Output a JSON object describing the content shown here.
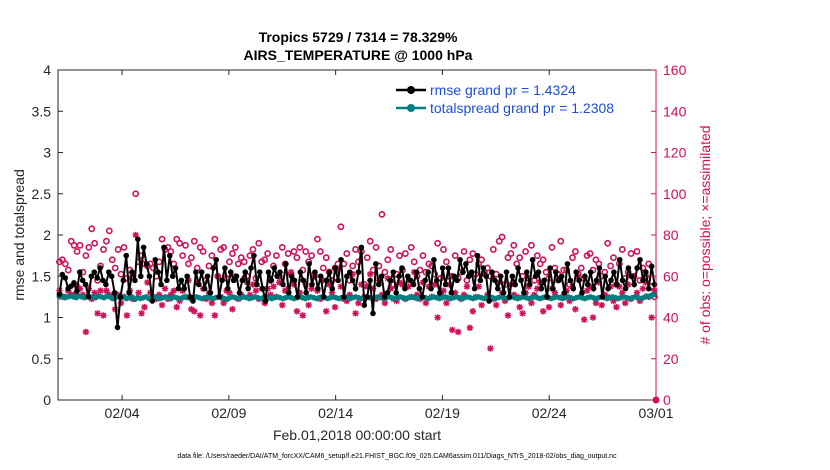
{
  "chart_data": {
    "type": "line",
    "title_line1": "Tropics 5729 / 7314 = 78.329%",
    "title_line2": "AIRS_TEMPERATURE @ 1000 hPa",
    "ylabel_left": "rmse and totalspread",
    "ylabel_right": "# of obs: o=possible; ×=assimilated",
    "xlabel": "Feb.01,2018 00:00:00 start",
    "footnote": "data file: /Users/raeder/DAI/ATM_forcXX/CAM6_setup/f.e21.FHIST_BGC.f09_025.CAM6assim.011/Diags_NTrS_2018-02/obs_diag_output.nc",
    "xlim_days": [
      1,
      29
    ],
    "x_ticks": [
      {
        "day": 4,
        "label": "02/04"
      },
      {
        "day": 9,
        "label": "02/09"
      },
      {
        "day": 14,
        "label": "02/14"
      },
      {
        "day": 19,
        "label": "02/19"
      },
      {
        "day": 24,
        "label": "02/24"
      },
      {
        "day": 29,
        "label": "03/01"
      }
    ],
    "ylim_left": [
      0,
      4
    ],
    "y_ticks_left": [
      "0",
      "0.5",
      "1",
      "1.5",
      "2",
      "2.5",
      "3",
      "3.5",
      "4"
    ],
    "ylim_right": [
      0,
      160
    ],
    "y_ticks_right": [
      "0",
      "20",
      "40",
      "60",
      "80",
      "100",
      "120",
      "140",
      "160"
    ],
    "grid": false,
    "legend_position": "top-right",
    "colors": {
      "rmse": "#000000",
      "spread": "#008080",
      "obs": "#d1105a",
      "legend_text": "#1a4fd6",
      "axis": "#262626"
    },
    "series": [
      {
        "name": "rmse grand pr = 1.4324",
        "axis": "left",
        "marker": "filled-circle",
        "values": [
          1.28,
          1.52,
          1.48,
          1.35,
          1.38,
          1.42,
          1.32,
          1.55,
          1.45,
          1.4,
          1.25,
          1.5,
          1.55,
          1.48,
          1.6,
          1.45,
          1.4,
          1.55,
          1.5,
          1.3,
          0.88,
          1.25,
          1.45,
          1.75,
          1.3,
          1.55,
          1.45,
          1.95,
          1.5,
          1.85,
          1.65,
          1.5,
          1.2,
          1.7,
          1.55,
          1.4,
          1.85,
          1.45,
          1.75,
          1.5,
          1.6,
          1.35,
          1.45,
          1.35,
          1.5,
          1.25,
          1.2,
          1.55,
          1.4,
          1.55,
          1.35,
          1.5,
          1.3,
          1.6,
          1.7,
          1.25,
          1.45,
          1.6,
          1.35,
          1.55,
          1.45,
          1.5,
          1.3,
          1.45,
          1.55,
          1.35,
          1.6,
          1.75,
          1.4,
          1.55,
          1.35,
          1.2,
          1.55,
          1.45,
          1.6,
          1.5,
          1.55,
          1.4,
          1.65,
          1.3,
          1.5,
          1.45,
          1.25,
          1.55,
          1.45,
          1.3,
          1.65,
          1.4,
          1.55,
          1.35,
          1.5,
          1.25,
          1.45,
          1.55,
          1.35,
          1.6,
          1.45,
          1.7,
          1.25,
          1.5,
          1.55,
          1.45,
          1.35,
          1.55,
          1.85,
          1.15,
          1.25,
          1.45,
          1.05,
          1.65,
          1.4,
          1.5,
          1.25,
          1.3,
          1.45,
          1.55,
          1.3,
          1.5,
          1.6,
          1.35,
          1.5,
          1.45,
          1.4,
          1.55,
          1.35,
          1.25,
          1.45,
          1.55,
          1.35,
          1.7,
          1.45,
          1.3,
          1.6,
          1.4,
          1.6,
          1.3,
          1.5,
          1.45,
          1.7,
          1.55,
          1.65,
          1.5,
          1.55,
          1.35,
          1.75,
          1.45,
          1.6,
          1.5,
          1.2,
          1.55,
          1.45,
          1.35,
          1.5,
          1.3,
          1.55,
          1.25,
          1.5,
          1.4,
          1.6,
          1.45,
          1.3,
          1.55,
          1.4,
          1.7,
          1.5,
          1.55,
          1.35,
          1.45,
          1.25,
          1.6,
          1.35,
          1.55,
          1.45,
          1.5,
          1.3,
          1.65,
          1.45,
          1.35,
          1.55,
          1.45,
          1.3,
          1.5,
          1.4,
          1.55,
          1.35,
          1.45,
          1.6,
          1.25,
          1.5,
          1.35,
          1.45,
          1.55,
          1.4,
          1.7,
          1.45,
          1.35,
          1.6,
          1.5,
          1.4,
          1.6,
          1.7,
          1.45,
          1.55,
          1.35,
          1.62,
          1.4
        ]
      },
      {
        "name": "totalspread grand pr = 1.2308",
        "axis": "left",
        "marker": "filled-circle",
        "values": [
          1.25,
          1.26,
          1.24,
          1.25,
          1.26,
          1.25,
          1.24,
          1.26,
          1.25,
          1.24,
          1.26,
          1.25,
          1.25,
          1.24,
          1.26,
          1.25,
          1.24,
          1.26,
          1.25,
          1.23,
          1.24,
          1.25,
          1.24,
          1.25,
          1.23,
          1.24,
          1.25,
          1.22,
          1.24,
          1.23,
          1.24,
          1.25,
          1.23,
          1.24,
          1.25,
          1.24,
          1.23,
          1.24,
          1.25,
          1.24,
          1.23,
          1.25,
          1.24,
          1.23,
          1.24,
          1.25,
          1.24,
          1.23,
          1.24,
          1.25,
          1.24,
          1.23,
          1.24,
          1.25,
          1.24,
          1.23,
          1.24,
          1.25,
          1.24,
          1.23,
          1.22,
          1.24,
          1.25,
          1.24,
          1.23,
          1.24,
          1.25,
          1.24,
          1.23,
          1.24,
          1.25,
          1.24,
          1.23,
          1.24,
          1.25,
          1.24,
          1.23,
          1.24,
          1.25,
          1.24,
          1.23,
          1.24,
          1.25,
          1.24,
          1.23,
          1.24,
          1.25,
          1.24,
          1.23,
          1.24,
          1.25,
          1.24,
          1.23,
          1.24,
          1.25,
          1.24,
          1.23,
          1.24,
          1.25,
          1.24,
          1.23,
          1.24,
          1.25,
          1.24,
          1.23,
          1.24,
          1.25,
          1.24,
          1.23,
          1.24,
          1.25,
          1.24,
          1.23,
          1.24,
          1.25,
          1.24,
          1.23,
          1.24,
          1.25,
          1.24,
          1.23,
          1.24,
          1.25,
          1.24,
          1.23,
          1.24,
          1.25,
          1.24,
          1.23,
          1.24,
          1.25,
          1.24,
          1.23,
          1.24,
          1.25,
          1.24,
          1.23,
          1.24,
          1.25,
          1.24,
          1.23,
          1.24,
          1.25,
          1.24,
          1.23,
          1.24,
          1.25,
          1.24,
          1.23,
          1.24,
          1.25,
          1.24,
          1.23,
          1.24,
          1.25,
          1.24,
          1.23,
          1.24,
          1.25,
          1.24,
          1.23,
          1.24,
          1.25,
          1.24,
          1.23,
          1.24,
          1.25,
          1.24,
          1.23,
          1.24,
          1.25,
          1.24,
          1.23,
          1.24,
          1.25,
          1.24,
          1.23,
          1.24,
          1.25,
          1.24,
          1.23,
          1.24,
          1.25,
          1.24,
          1.23,
          1.24,
          1.25,
          1.24,
          1.23,
          1.24,
          1.25,
          1.24,
          1.23,
          1.24,
          1.25,
          1.24,
          1.23,
          1.24,
          1.25,
          1.24,
          1.23,
          1.24,
          1.25,
          1.24,
          1.23,
          1.24,
          1.25,
          1.24,
          1.23,
          1.24,
          1.26,
          1.25,
          1.27,
          1.28
        ]
      },
      {
        "name": "obs possible",
        "axis": "right",
        "marker": "open-circle",
        "values": [
          67,
          68,
          66,
          63,
          77,
          75,
          72,
          75,
          62,
          70,
          74,
          83,
          76,
          58,
          65,
          73,
          77,
          82,
          68,
          64,
          73,
          61,
          74,
          59,
          63,
          60,
          100,
          67,
          70,
          66,
          65,
          66,
          64,
          60,
          67,
          78,
          73,
          74,
          72,
          66,
          78,
          76,
          70,
          75,
          66,
          69,
          77,
          64,
          74,
          72,
          58,
          65,
          70,
          78,
          60,
          73,
          74,
          59,
          67,
          71,
          74,
          66,
          69,
          67,
          60,
          70,
          73,
          59,
          76,
          67,
          68,
          71,
          58,
          65,
          70,
          60,
          74,
          66,
          71,
          61,
          72,
          69,
          74,
          63,
          72,
          67,
          70,
          60,
          78,
          72,
          64,
          69,
          62,
          58,
          64,
          66,
          84,
          66,
          71,
          58,
          65,
          73,
          67,
          72,
          56,
          69,
          77,
          63,
          74,
          65,
          90,
          62,
          68,
          73,
          56,
          61,
          70,
          63,
          71,
          56,
          74,
          67,
          60,
          63,
          70,
          62,
          66,
          65,
          61,
          76,
          59,
          73,
          67,
          60,
          60,
          70,
          59,
          62,
          72,
          58,
          68,
          71,
          61,
          66,
          68,
          62,
          64,
          60,
          73,
          61,
          77,
          79,
          56,
          69,
          71,
          75,
          66,
          69,
          60,
          72,
          59,
          75,
          58,
          70,
          66,
          68,
          62,
          59,
          74,
          64,
          61,
          77,
          63,
          63,
          56,
          69,
          72,
          61,
          64,
          59,
          70,
          71,
          63,
          68,
          66,
          60,
          62,
          76,
          65,
          69,
          56,
          66,
          73,
          59,
          62,
          71,
          60,
          72,
          58,
          64,
          60,
          66,
          55,
          50
        ]
      },
      {
        "name": "obs assimilated",
        "axis": "right",
        "marker": "asterisk",
        "values": [
          53,
          50,
          50,
          53,
          51,
          51,
          55,
          54,
          51,
          33,
          54,
          49,
          52,
          42,
          53,
          41,
          53,
          51,
          50,
          44,
          51,
          47,
          50,
          41,
          53,
          49,
          80,
          52,
          42,
          45,
          57,
          52,
          50,
          49,
          51,
          46,
          54,
          49,
          51,
          53,
          45,
          48,
          53,
          50,
          58,
          44,
          43,
          57,
          41,
          54,
          49,
          52,
          47,
          41,
          60,
          50,
          47,
          53,
          52,
          44,
          60,
          49,
          51,
          59,
          57,
          51,
          56,
          53,
          49,
          54,
          47,
          54,
          51,
          55,
          50,
          57,
          46,
          53,
          54,
          62,
          56,
          43,
          52,
          41,
          56,
          46,
          54,
          61,
          53,
          49,
          58,
          43,
          56,
          52,
          45,
          63,
          55,
          49,
          48,
          51,
          61,
          42,
          47,
          56,
          50,
          55,
          61,
          54,
          49,
          58,
          51,
          47,
          59,
          54,
          49,
          48,
          57,
          56,
          49,
          55,
          50,
          62,
          51,
          49,
          57,
          47,
          55,
          50,
          56,
          40,
          51,
          53,
          47,
          56,
          34,
          52,
          33,
          49,
          51,
          55,
          35,
          43,
          50,
          55,
          46,
          61,
          51,
          25,
          49,
          46,
          57,
          52,
          48,
          41,
          56,
          51,
          50,
          45,
          42,
          52,
          55,
          47,
          51,
          54,
          57,
          43,
          50,
          45,
          54,
          52,
          58,
          46,
          51,
          53,
          48,
          55,
          44,
          60,
          50,
          39,
          53,
          55,
          40,
          47,
          57,
          46,
          51,
          50,
          55,
          48,
          45,
          55,
          52,
          47,
          56,
          49,
          60,
          52,
          48,
          54,
          57,
          50,
          40,
          53
        ]
      }
    ]
  }
}
